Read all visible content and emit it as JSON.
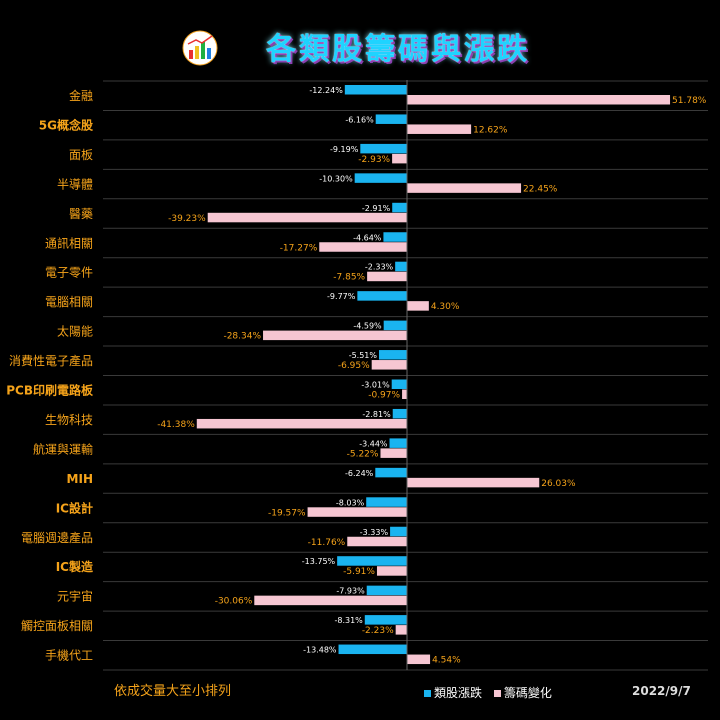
{
  "title": "各類股籌碼與漲跌",
  "footnote": "依成交量大至小排列",
  "date": "2022/9/7",
  "colors": {
    "price": "#1ab4f0",
    "chip": "#f6c6d2",
    "label": "#f5a31a"
  },
  "chart_data": {
    "type": "bar",
    "orientation": "horizontal",
    "categories": [
      "金融",
      "5G概念股",
      "面板",
      "半導體",
      "醫藥",
      "通訊相關",
      "電子零件",
      "電腦相關",
      "太陽能",
      "消費性電子產品",
      "PCB印刷電路板",
      "生物科技",
      "航運與運輸",
      "MIH",
      "IC設計",
      "電腦週邊產品",
      "IC製造",
      "元宇宙",
      "觸控面板相關",
      "手機代工"
    ],
    "series": [
      {
        "name": "類股漲跌",
        "values": [
          -12.24,
          -6.16,
          -9.19,
          -10.3,
          -2.91,
          -4.64,
          -2.33,
          -9.77,
          -4.59,
          -5.51,
          -3.01,
          -2.81,
          -3.44,
          -6.24,
          -8.03,
          -3.33,
          -13.75,
          -7.93,
          -8.31,
          -13.48
        ],
        "labels": [
          "-12.24%",
          "-6.16%",
          "-9.19%",
          "-10.30%",
          "-2.91%",
          "-4.64%",
          "-2.33%",
          "-9.77%",
          "-4.59%",
          "-5.51%",
          "-3.01%",
          "-2.81%",
          "-3.44%",
          "-6.24%",
          "-8.03%",
          "-3.33%",
          "-13.75%",
          "-7.93%",
          "-8.31%",
          "-13.48%"
        ]
      },
      {
        "name": "籌碼變化",
        "values": [
          51.78,
          12.62,
          -2.93,
          22.45,
          -39.23,
          -17.27,
          -7.85,
          4.3,
          -28.34,
          -6.95,
          -0.97,
          -41.38,
          -5.22,
          26.03,
          -19.57,
          -11.76,
          -5.91,
          -30.06,
          -2.23,
          4.54
        ],
        "labels": [
          "51.78%",
          "12.62%",
          "-2.93%",
          "22.45%",
          "-39.23%",
          "-17.27%",
          "-7.85%",
          "4.30%",
          "-28.34%",
          "-6.95%",
          "-0.97%",
          "-41.38%",
          "-5.22%",
          "26.03%",
          "-19.57%",
          "-11.76%",
          "-5.91%",
          "-30.06%",
          "-2.23%",
          "4.54%"
        ]
      }
    ],
    "legend_position": "bottom"
  }
}
